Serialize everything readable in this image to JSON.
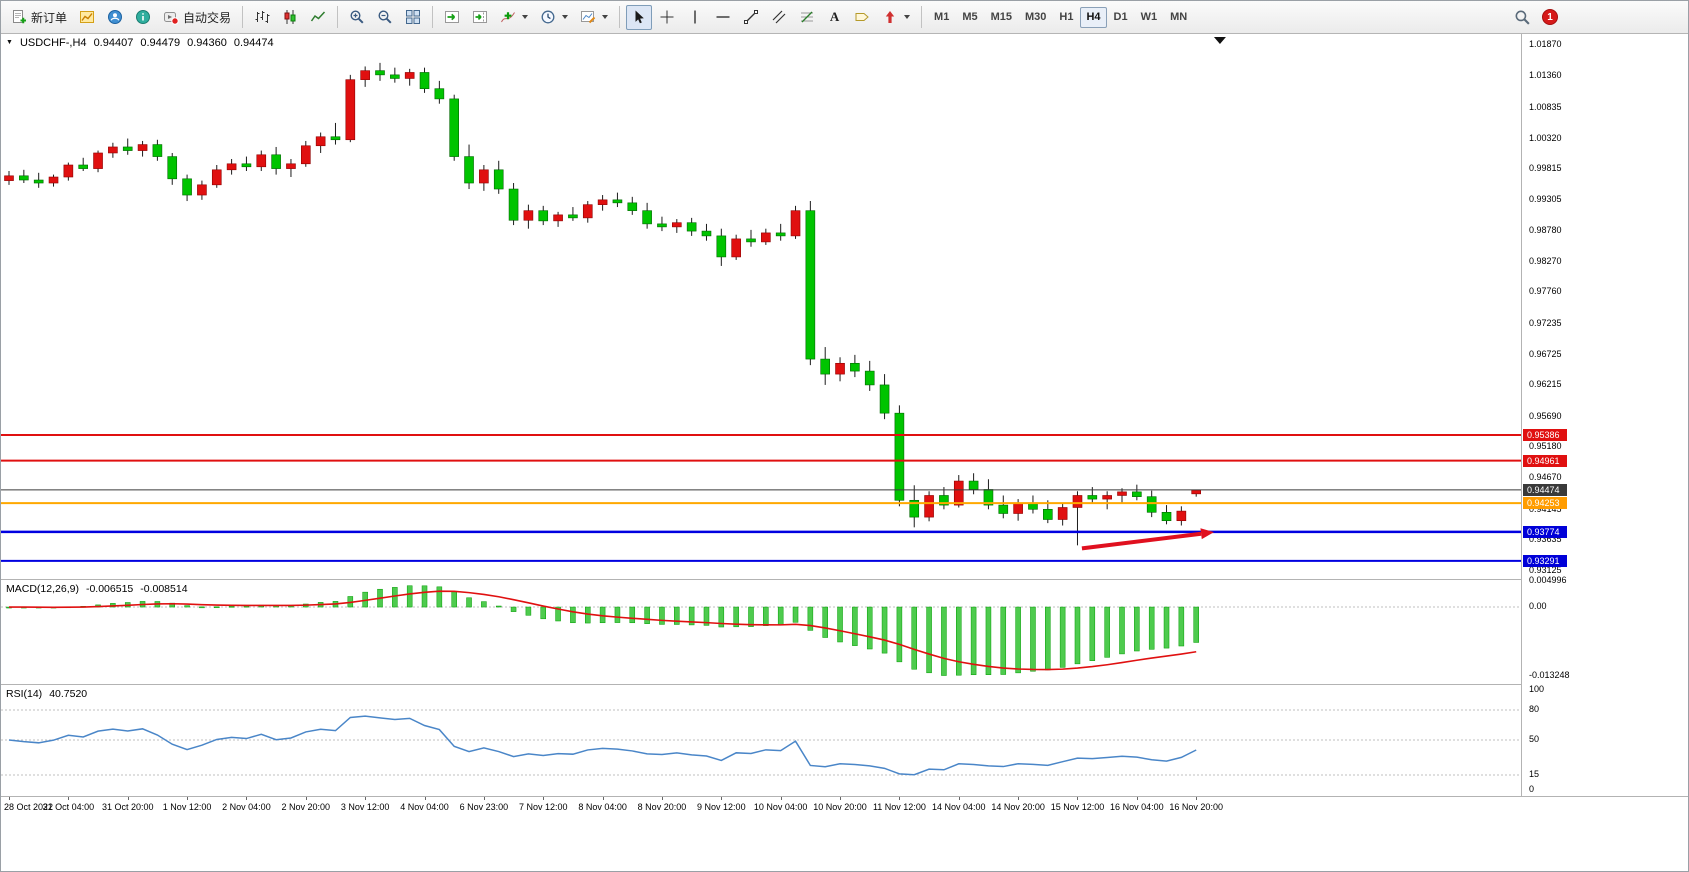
{
  "toolbar": {
    "new_order_label": "新订单",
    "auto_trading_label": "自动交易",
    "text_tool_glyph": "A",
    "timeframes": [
      "M1",
      "M5",
      "M15",
      "M30",
      "H1",
      "H4",
      "D1",
      "W1",
      "MN"
    ],
    "active_timeframe": "H4",
    "notification_count": "1"
  },
  "icons": {
    "expand_triangle": "▼"
  },
  "price_header": {
    "symbol": "USDCHF-,H4",
    "open": "0.94407",
    "high": "0.94479",
    "low": "0.94360",
    "close": "0.94474"
  },
  "colors": {
    "up": "#e01010",
    "down": "#00c400",
    "up_border": "#8f0000",
    "down_border": "#006800",
    "wick": "#1c1c1c",
    "macd_hist": "#4ecb4e",
    "macd_hist_stroke": "#009c00",
    "signal": "#e01010",
    "rsi": "#4a86c8",
    "arrow": "#e0101f",
    "level_dash": "#bfbfbf"
  },
  "chart_data": {
    "type": "candlestick",
    "title": "USDCHF-,H4",
    "symbol": "USDCHF-",
    "period": "H4",
    "y_axis": {
      "min": 0.9299,
      "max": 1.0206,
      "labels": [
        "1.01870",
        "1.01360",
        "1.00835",
        "1.00320",
        "0.99815",
        "0.99305",
        "0.98780",
        "0.98270",
        "0.97760",
        "0.97235",
        "0.96725",
        "0.96215",
        "0.95690",
        "0.95180",
        "0.94670",
        "0.94145",
        "0.93635",
        "0.93125"
      ]
    },
    "x_labels": [
      {
        "bar": 0,
        "text": "28 Oct 2022"
      },
      {
        "bar": 4,
        "text": "31 Oct 04:00"
      },
      {
        "bar": 8,
        "text": "31 Oct 20:00"
      },
      {
        "bar": 12,
        "text": "1 Nov 12:00"
      },
      {
        "bar": 16,
        "text": "2 Nov 04:00"
      },
      {
        "bar": 20,
        "text": "2 Nov 20:00"
      },
      {
        "bar": 24,
        "text": "3 Nov 12:00"
      },
      {
        "bar": 28,
        "text": "4 Nov 04:00"
      },
      {
        "bar": 32,
        "text": "6 Nov 23:00"
      },
      {
        "bar": 36,
        "text": "7 Nov 12:00"
      },
      {
        "bar": 40,
        "text": "8 Nov 04:00"
      },
      {
        "bar": 44,
        "text": "8 Nov 20:00"
      },
      {
        "bar": 48,
        "text": "9 Nov 12:00"
      },
      {
        "bar": 52,
        "text": "10 Nov 04:00"
      },
      {
        "bar": 56,
        "text": "10 Nov 20:00"
      },
      {
        "bar": 60,
        "text": "11 Nov 12:00"
      },
      {
        "bar": 64,
        "text": "14 Nov 04:00"
      },
      {
        "bar": 68,
        "text": "14 Nov 20:00"
      },
      {
        "bar": 72,
        "text": "15 Nov 12:00"
      },
      {
        "bar": 76,
        "text": "16 Nov 04:00"
      },
      {
        "bar": 80,
        "text": "16 Nov 20:00"
      }
    ],
    "candles": [
      [
        0.9962,
        0.9978,
        0.9955,
        0.997
      ],
      [
        0.997,
        0.998,
        0.9958,
        0.9963
      ],
      [
        0.9963,
        0.9975,
        0.995,
        0.9958
      ],
      [
        0.9958,
        0.9972,
        0.9952,
        0.9968
      ],
      [
        0.9968,
        0.9992,
        0.9962,
        0.9988
      ],
      [
        0.9988,
        1.0,
        0.9978,
        0.9982
      ],
      [
        0.9982,
        1.0012,
        0.9976,
        1.0008
      ],
      [
        1.0008,
        1.0025,
        1.0,
        1.0018
      ],
      [
        1.0018,
        1.0032,
        1.0005,
        1.0012
      ],
      [
        1.0012,
        1.0028,
        1.0002,
        1.0022
      ],
      [
        1.0022,
        1.003,
        0.9995,
        1.0002
      ],
      [
        1.0002,
        1.0008,
        0.9955,
        0.9965
      ],
      [
        0.9965,
        0.9972,
        0.9928,
        0.9938
      ],
      [
        0.9938,
        0.9962,
        0.993,
        0.9955
      ],
      [
        0.9955,
        0.9988,
        0.995,
        0.998
      ],
      [
        0.998,
        0.9998,
        0.9972,
        0.999
      ],
      [
        0.999,
        1.0002,
        0.9978,
        0.9985
      ],
      [
        0.9985,
        1.0012,
        0.9978,
        1.0005
      ],
      [
        1.0005,
        1.0018,
        0.9972,
        0.9982
      ],
      [
        0.9982,
        0.9998,
        0.9968,
        0.999
      ],
      [
        0.999,
        1.0028,
        0.9985,
        1.002
      ],
      [
        1.002,
        1.0042,
        1.0008,
        1.0035
      ],
      [
        1.0035,
        1.0058,
        1.0022,
        1.003
      ],
      [
        1.003,
        1.0138,
        1.0026,
        1.013
      ],
      [
        1.013,
        1.0152,
        1.0118,
        1.0145
      ],
      [
        1.0145,
        1.0158,
        1.0128,
        1.0138
      ],
      [
        1.0138,
        1.015,
        1.0125,
        1.0132
      ],
      [
        1.0132,
        1.0148,
        1.012,
        1.0142
      ],
      [
        1.0142,
        1.015,
        1.0108,
        1.0115
      ],
      [
        1.0115,
        1.0128,
        1.009,
        1.0098
      ],
      [
        1.0098,
        1.0105,
        0.9995,
        1.0002
      ],
      [
        1.0002,
        1.0022,
        0.9948,
        0.9958
      ],
      [
        0.9958,
        0.9988,
        0.9945,
        0.998
      ],
      [
        0.998,
        0.9995,
        0.994,
        0.9948
      ],
      [
        0.9948,
        0.9958,
        0.9888,
        0.9896
      ],
      [
        0.9896,
        0.9922,
        0.9882,
        0.9912
      ],
      [
        0.9912,
        0.992,
        0.9888,
        0.9895
      ],
      [
        0.9895,
        0.991,
        0.9885,
        0.9905
      ],
      [
        0.9905,
        0.9918,
        0.9895,
        0.99
      ],
      [
        0.99,
        0.9928,
        0.9892,
        0.9922
      ],
      [
        0.9922,
        0.9938,
        0.9912,
        0.993
      ],
      [
        0.993,
        0.9942,
        0.9918,
        0.9925
      ],
      [
        0.9925,
        0.9935,
        0.9905,
        0.9912
      ],
      [
        0.9912,
        0.9925,
        0.9882,
        0.989
      ],
      [
        0.989,
        0.9902,
        0.9878,
        0.9885
      ],
      [
        0.9885,
        0.9898,
        0.9875,
        0.9892
      ],
      [
        0.9892,
        0.99,
        0.987,
        0.9878
      ],
      [
        0.9878,
        0.989,
        0.9862,
        0.987
      ],
      [
        0.987,
        0.9882,
        0.982,
        0.9835
      ],
      [
        0.9835,
        0.9872,
        0.983,
        0.9865
      ],
      [
        0.9865,
        0.988,
        0.9852,
        0.986
      ],
      [
        0.986,
        0.9882,
        0.9855,
        0.9875
      ],
      [
        0.9875,
        0.989,
        0.9862,
        0.987
      ],
      [
        0.987,
        0.992,
        0.9865,
        0.9912
      ],
      [
        0.9912,
        0.9928,
        0.9655,
        0.9665
      ],
      [
        0.9665,
        0.9685,
        0.9622,
        0.964
      ],
      [
        0.964,
        0.9668,
        0.9628,
        0.9658
      ],
      [
        0.9658,
        0.9672,
        0.9635,
        0.9645
      ],
      [
        0.9645,
        0.9662,
        0.9612,
        0.9622
      ],
      [
        0.9622,
        0.964,
        0.9565,
        0.9575
      ],
      [
        0.9575,
        0.9588,
        0.942,
        0.943
      ],
      [
        0.943,
        0.9455,
        0.9385,
        0.9402
      ],
      [
        0.9402,
        0.9445,
        0.9395,
        0.9438
      ],
      [
        0.9438,
        0.9452,
        0.9415,
        0.9422
      ],
      [
        0.9422,
        0.9472,
        0.9418,
        0.9462
      ],
      [
        0.9462,
        0.9475,
        0.944,
        0.9448
      ],
      [
        0.9448,
        0.9465,
        0.9415,
        0.9422
      ],
      [
        0.9422,
        0.9438,
        0.94,
        0.9408
      ],
      [
        0.9408,
        0.9432,
        0.9396,
        0.9425
      ],
      [
        0.9425,
        0.9438,
        0.9408,
        0.9415
      ],
      [
        0.9415,
        0.943,
        0.9392,
        0.9398
      ],
      [
        0.9398,
        0.9425,
        0.9388,
        0.9418
      ],
      [
        0.9418,
        0.9445,
        0.9355,
        0.9438
      ],
      [
        0.9438,
        0.9452,
        0.9425,
        0.9432
      ],
      [
        0.9432,
        0.9445,
        0.9415,
        0.9438
      ],
      [
        0.9438,
        0.945,
        0.9425,
        0.9444
      ],
      [
        0.9444,
        0.9456,
        0.943,
        0.9436
      ],
      [
        0.9436,
        0.9446,
        0.9402,
        0.941
      ],
      [
        0.941,
        0.9422,
        0.939,
        0.9396
      ],
      [
        0.9396,
        0.942,
        0.9388,
        0.9412
      ],
      [
        0.94407,
        0.94479,
        0.9436,
        0.94474
      ]
    ],
    "horizontal_lines": [
      {
        "price": 0.95386,
        "label": "0.95386",
        "color": "#e01010",
        "width": 2,
        "badge": "#e01010"
      },
      {
        "price": 0.94961,
        "label": "0.94961",
        "color": "#e01010",
        "width": 2,
        "badge": "#e01010"
      },
      {
        "price": 0.94474,
        "label": "0.94474",
        "color": "#3a3a3a",
        "width": 1,
        "badge": "#3a3a3a"
      },
      {
        "price": 0.94253,
        "label": "0.94253",
        "color": "#ffa800",
        "width": 2,
        "badge": "#ff9c00"
      },
      {
        "price": 0.93774,
        "label": "0.93774",
        "color": "#0000e0",
        "width": 2.5,
        "badge": "#0000d8"
      },
      {
        "price": 0.93291,
        "label": "0.93291",
        "color": "#0000e0",
        "width": 2,
        "badge": "#0000d8"
      }
    ],
    "arrow": {
      "from_bar": 72.3,
      "from_price": 0.935,
      "to_bar": 81.2,
      "to_price": 0.9377
    },
    "shift_marker_bar": 81.6,
    "indicators": {
      "macd": {
        "label": "MACD(12,26,9)",
        "value_main": "-0.006515",
        "value_signal": "-0.008514",
        "params": {
          "fast": 12,
          "slow": 26,
          "signal": 9
        },
        "range": {
          "min": -0.01477,
          "max": 0.00519
        },
        "axis_labels": [
          {
            "value": 0.004996,
            "text": "0.004996"
          },
          {
            "value": 0,
            "text": "0.00"
          },
          {
            "value": -0.013248,
            "text": "-0.013248"
          }
        ]
      },
      "rsi": {
        "label": "RSI(14)",
        "value": "40.7520",
        "period": 14,
        "levels": [
          80,
          50,
          15
        ],
        "axis_labels": [
          {
            "value": 100,
            "text": "100"
          },
          {
            "value": 80,
            "text": "80"
          },
          {
            "value": 50,
            "text": "50"
          },
          {
            "value": 15,
            "text": "15"
          },
          {
            "value": 0,
            "text": "0"
          }
        ]
      }
    }
  }
}
